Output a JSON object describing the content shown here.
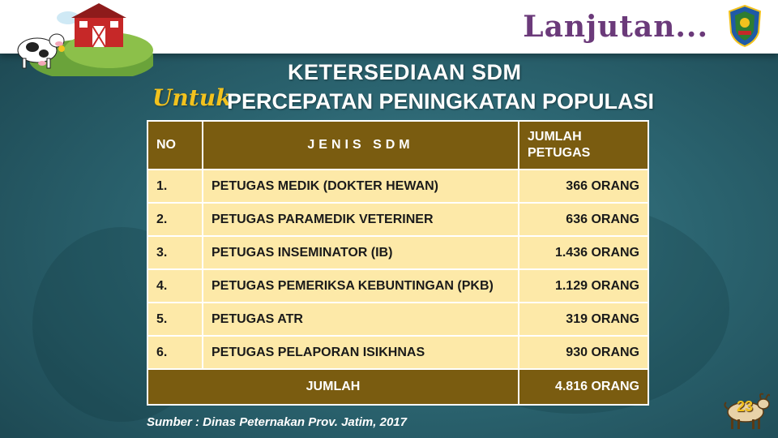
{
  "header": {
    "title": "Lanjutan..."
  },
  "slide": {
    "title_line1": "KETERSEDIAAN SDM",
    "title_untuk": "Untuk",
    "title_line2": "PERCEPATAN PENINGKATAN POPULASI"
  },
  "table": {
    "headers": {
      "no": "NO",
      "jenis": "JENIS SDM",
      "jumlah_line1": "JUMLAH",
      "jumlah_line2": "PETUGAS"
    },
    "rows": [
      {
        "no": "1.",
        "jenis": "PETUGAS MEDIK (DOKTER HEWAN)",
        "jumlah": "366 ORANG"
      },
      {
        "no": "2.",
        "jenis": "PETUGAS PARAMEDIK VETERINER",
        "jumlah": "636 ORANG"
      },
      {
        "no": "3.",
        "jenis": "PETUGAS INSEMINATOR (IB)",
        "jumlah": "1.436 ORANG"
      },
      {
        "no": "4.",
        "jenis": "PETUGAS PEMERIKSA KEBUNTINGAN (PKB)",
        "jumlah": "1.129 ORANG"
      },
      {
        "no": "5.",
        "jenis": "PETUGAS ATR",
        "jumlah": "319 ORANG"
      },
      {
        "no": "6.",
        "jenis": "PETUGAS PELAPORAN ISIKHNAS",
        "jumlah": "930 ORANG"
      }
    ],
    "total": {
      "label": "JUMLAH",
      "value": "4.816 ORANG"
    }
  },
  "source": "Sumber : Dinas Peternakan Prov. Jatim, 2017",
  "page_number": "23",
  "icons": {
    "farm": "farm-illustration-icon",
    "emblem": "jatim-emblem-icon",
    "goat": "goat-icon"
  },
  "colors": {
    "table_header": "#7a5c10",
    "table_body": "#fde9a8",
    "accent": "#f2c21e",
    "header_title": "#6b3a7a"
  }
}
